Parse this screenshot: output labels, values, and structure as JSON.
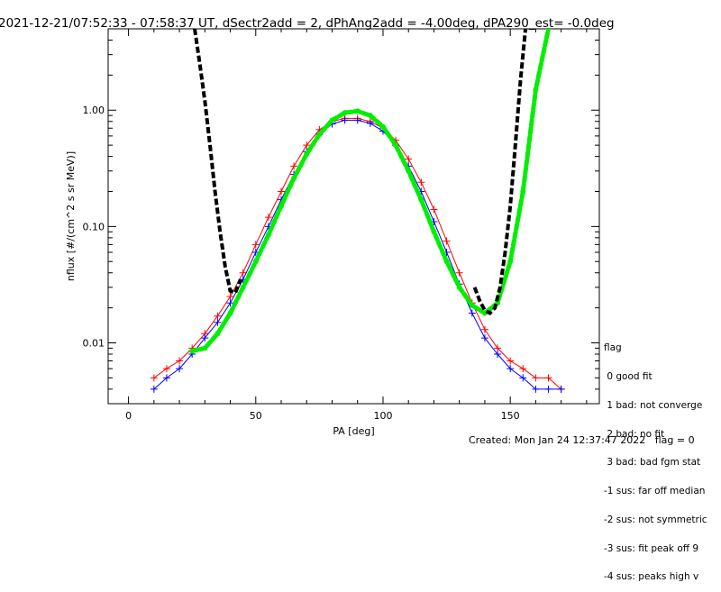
{
  "title": "2021-12-21/07:52:33 - 07:58:37 UT, dSectr2add = 2, dPhAng2add = -4.00deg, dPA290_est=  -0.0deg",
  "footer": "Created: Mon Jan 24 12:37:47 2022   flag = 0",
  "legend": {
    "title": "flag",
    "items": [
      " 0 good fit",
      " 1 bad: not converge",
      " 2 bad: no fit",
      " 3 bad: bad fgm stat",
      "-1 sus: far off median",
      "-2 sus: not symmetric",
      "-3 sus: fit peak off 9",
      "-4 sus: peaks high v"
    ]
  },
  "colors": {
    "red": "#ff0000",
    "blue": "#0000ff",
    "green": "#00ee00",
    "black": "#000000"
  },
  "chart_data": {
    "type": "line",
    "xlabel": "PA [deg]",
    "ylabel": "nflux [#/(cm^2 s sr MeV)]",
    "xlim": [
      -8,
      185
    ],
    "ylim": [
      0.003,
      5.0
    ],
    "yscale": "log",
    "x_ticks": [
      0,
      50,
      100,
      150
    ],
    "y_ticks": [
      0.01,
      0.1,
      1.0
    ],
    "y_tick_labels": [
      "0.01",
      "0.10",
      "1.00"
    ],
    "series": [
      {
        "color": "red",
        "x": [
          10,
          15,
          20,
          25,
          30,
          35,
          40,
          45,
          50,
          55,
          60,
          65,
          70,
          75,
          80,
          85,
          90,
          95,
          100,
          105,
          110,
          115,
          120,
          125,
          130,
          135,
          140,
          145,
          150,
          155,
          160,
          165,
          170
        ],
        "y": [
          0.005,
          0.006,
          0.007,
          0.009,
          0.012,
          0.017,
          0.025,
          0.04,
          0.07,
          0.12,
          0.2,
          0.33,
          0.5,
          0.68,
          0.8,
          0.85,
          0.85,
          0.8,
          0.7,
          0.55,
          0.38,
          0.24,
          0.14,
          0.075,
          0.04,
          0.022,
          0.013,
          0.009,
          0.007,
          0.006,
          0.005,
          0.005,
          0.004
        ]
      },
      {
        "color": "blue",
        "x": [
          10,
          15,
          20,
          25,
          30,
          35,
          40,
          45,
          50,
          55,
          60,
          65,
          70,
          75,
          80,
          85,
          90,
          95,
          100,
          105,
          110,
          115,
          120,
          125,
          130,
          135,
          140,
          145,
          150,
          155,
          160,
          165,
          170
        ],
        "y": [
          0.004,
          0.005,
          0.006,
          0.008,
          0.011,
          0.015,
          0.022,
          0.035,
          0.06,
          0.1,
          0.17,
          0.28,
          0.44,
          0.62,
          0.76,
          0.82,
          0.82,
          0.77,
          0.66,
          0.5,
          0.33,
          0.2,
          0.11,
          0.06,
          0.032,
          0.018,
          0.011,
          0.008,
          0.006,
          0.005,
          0.004,
          0.004,
          0.004
        ]
      },
      {
        "color": "green",
        "x": [
          25,
          30,
          35,
          40,
          45,
          50,
          55,
          60,
          65,
          70,
          75,
          80,
          85,
          90,
          95,
          100,
          105,
          110,
          115,
          120,
          125,
          130,
          135,
          140,
          145,
          150,
          155,
          160,
          165
        ],
        "y": [
          0.0085,
          0.009,
          0.012,
          0.018,
          0.03,
          0.05,
          0.085,
          0.15,
          0.26,
          0.42,
          0.62,
          0.82,
          0.95,
          0.98,
          0.9,
          0.72,
          0.5,
          0.3,
          0.17,
          0.09,
          0.05,
          0.03,
          0.021,
          0.018,
          0.022,
          0.05,
          0.2,
          1.5,
          5.0
        ]
      },
      {
        "color": "black",
        "x": [
          26,
          28,
          30,
          32,
          34,
          36,
          38,
          40,
          42,
          44,
          136,
          138,
          140,
          142,
          144,
          146,
          148,
          150,
          152,
          154,
          156
        ],
        "y": [
          5.0,
          2.5,
          1.2,
          0.5,
          0.2,
          0.09,
          0.045,
          0.028,
          0.027,
          0.035,
          0.03,
          0.023,
          0.019,
          0.018,
          0.02,
          0.03,
          0.06,
          0.15,
          0.5,
          1.8,
          5.0
        ]
      }
    ],
    "grid": false,
    "legend_placement": "right"
  }
}
